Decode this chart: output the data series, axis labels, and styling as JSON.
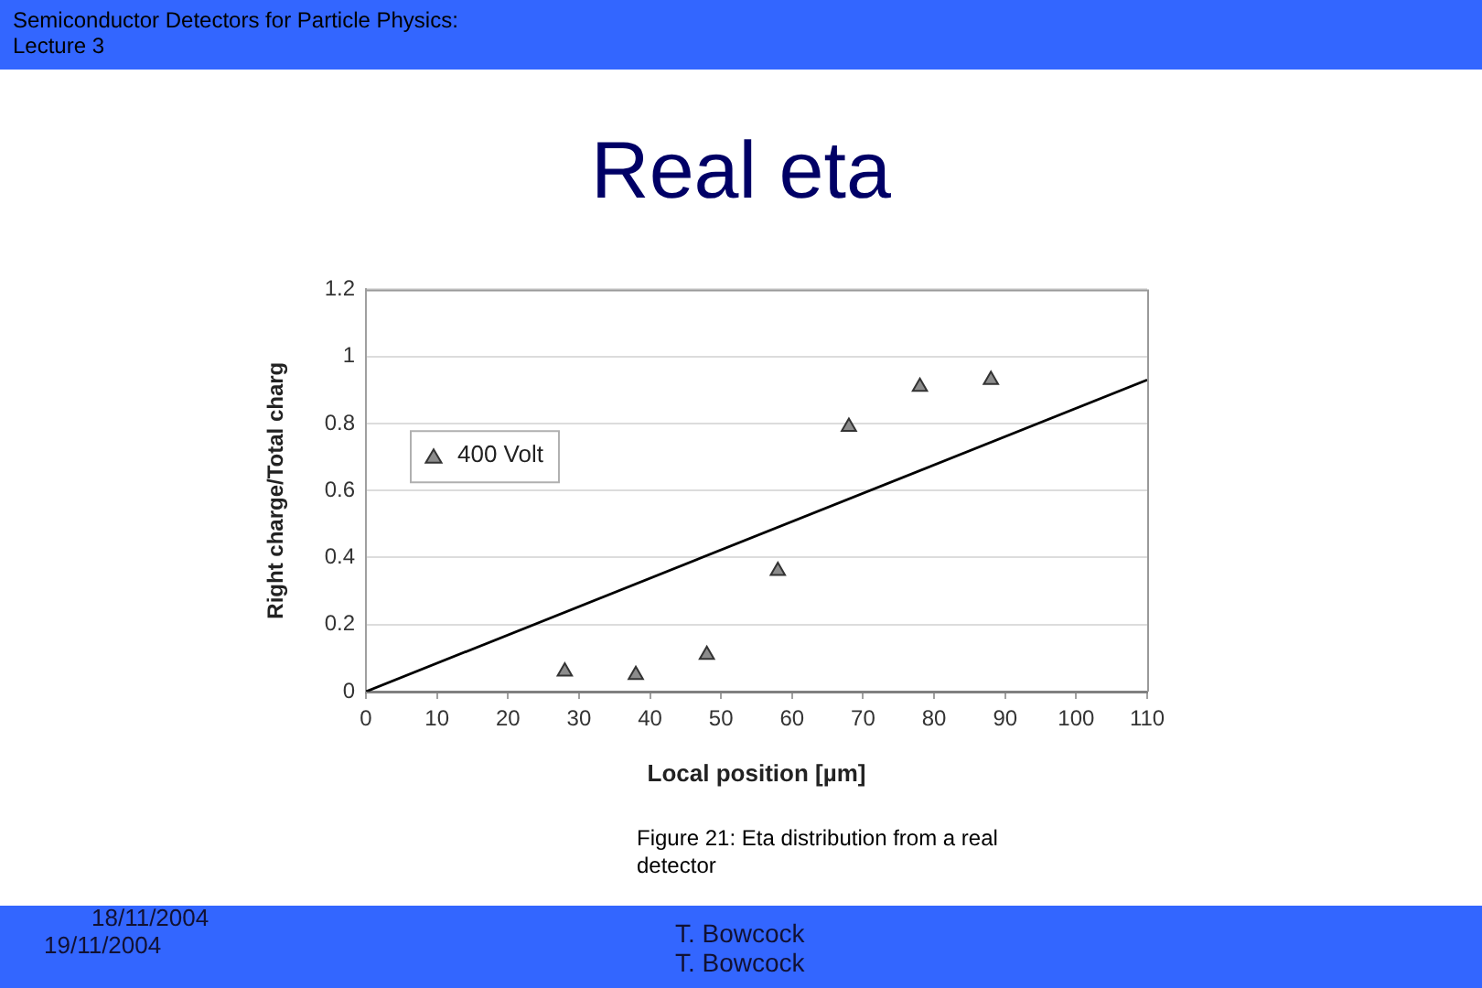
{
  "chart_data": {
    "type": "scatter",
    "title": "Real eta",
    "xlabel": "Local position [µm]",
    "ylabel": "Right charge/Total charg",
    "annotations": [
      "Semiconductor Detectors for Particle Physics: Lecture 3",
      "Figure 21: Eta distribution from a real detector",
      "18/11/2004",
      "19/11/2004",
      "T. Bowcock",
      "T. Bowcock"
    ],
    "series": [
      {
        "name": "400 Volt",
        "type": "scatter",
        "color": "#8c8c8c",
        "marker": "triangle",
        "x": [
          28,
          38,
          48,
          58,
          68,
          78,
          88
        ],
        "values": [
          0.06,
          0.05,
          0.11,
          0.36,
          0.79,
          0.91,
          0.93
        ]
      },
      {
        "type": "line",
        "color": "#000000",
        "marker": "none",
        "line_style": "solid",
        "x": [
          0,
          110
        ],
        "values": [
          0,
          0.93
        ]
      }
    ],
    "xlim": [
      0,
      110
    ],
    "xticks": [
      0,
      10,
      20,
      30,
      40,
      50,
      60,
      70,
      80,
      90,
      100,
      110
    ],
    "ylim": [
      0,
      1.2
    ],
    "yticks": [
      0,
      0.2,
      0.4,
      0.6,
      0.8,
      1,
      1.2
    ],
    "grid": "y",
    "legend": "left"
  }
}
